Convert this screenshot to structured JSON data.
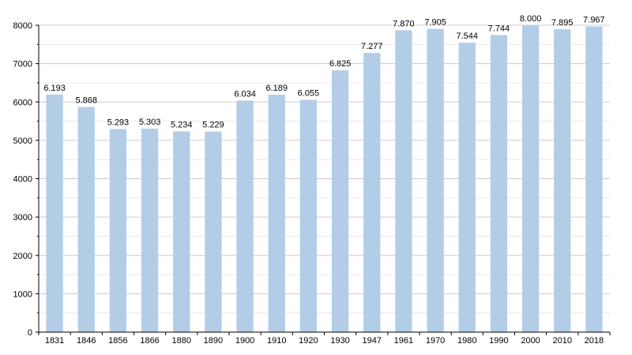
{
  "chart_data": {
    "type": "bar",
    "categories": [
      "1831",
      "1846",
      "1856",
      "1866",
      "1880",
      "1890",
      "1900",
      "1910",
      "1920",
      "1930",
      "1947",
      "1961",
      "1970",
      "1980",
      "1990",
      "2000",
      "2010",
      "2018"
    ],
    "values": [
      6193,
      5868,
      5293,
      5303,
      5234,
      5229,
      6034,
      6189,
      6055,
      6825,
      7277,
      7870,
      7905,
      7544,
      7744,
      8000,
      7895,
      7967
    ],
    "data_labels": [
      "6.193",
      "5.868",
      "5.293",
      "5.303",
      "5.234",
      "5.229",
      "6.034",
      "6.189",
      "6.055",
      "6.825",
      "7.277",
      "7.870",
      "7.905",
      "7.544",
      "7.744",
      "8.000",
      "7.895",
      "7.967"
    ],
    "y_ticks": [
      "0",
      "1000",
      "2000",
      "3000",
      "4000",
      "5000",
      "6000",
      "7000",
      "8000"
    ],
    "ylim": [
      0,
      8000
    ],
    "grid": true,
    "colors": {
      "bar": "#b3cde6",
      "grid": "#cccccc",
      "axis": "#000000"
    }
  }
}
